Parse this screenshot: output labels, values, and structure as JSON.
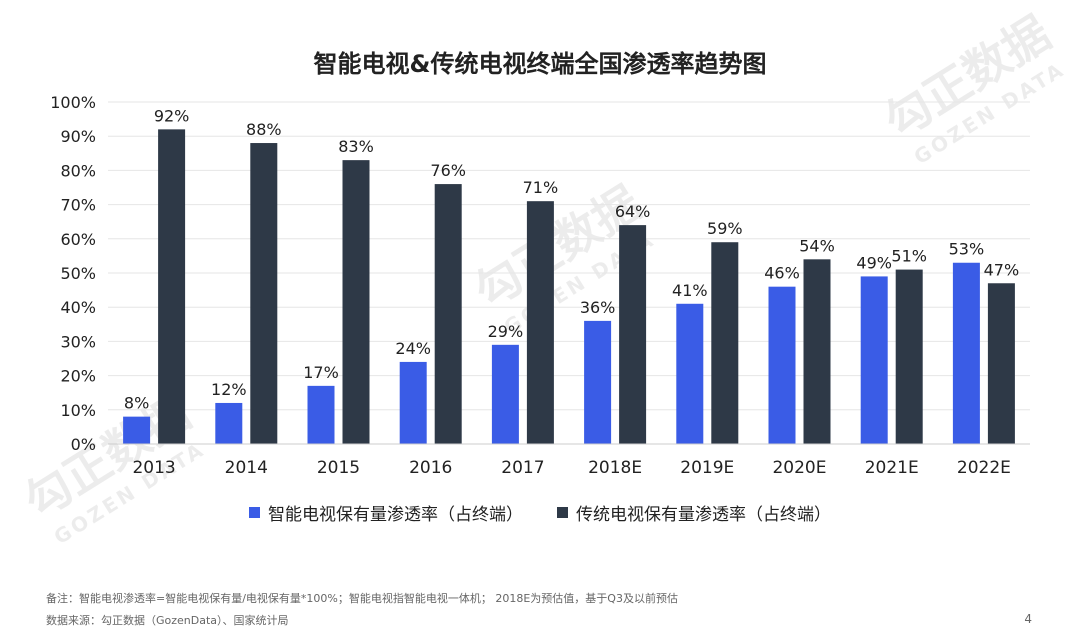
{
  "colors": {
    "smart": "#3a5ce6",
    "traditional": "#2e3947",
    "grid": "#e6e6e6"
  },
  "watermark": {
    "cn": "勾正数据",
    "en": "GOZEN DATA"
  },
  "footnotes": {
    "note": "备注：智能电视渗透率=智能电视保有量/电视保有量*100%；智能电视指智能电视一体机；   2018E为预估值，基于Q3及以前预估",
    "source": "数据来源：勾正数据（GozenData）、国家统计局"
  },
  "page_number": "4",
  "chart_data": {
    "type": "bar",
    "title": "智能电视&传统电视终端全国渗透率趋势图",
    "categories": [
      "2013",
      "2014",
      "2015",
      "2016",
      "2017",
      "2018E",
      "2019E",
      "2020E",
      "2021E",
      "2022E"
    ],
    "series": [
      {
        "name": "智能电视保有量渗透率（占终端）",
        "values": [
          8,
          12,
          17,
          24,
          29,
          36,
          41,
          46,
          49,
          53
        ],
        "labels": [
          "8%",
          "12%",
          "17%",
          "24%",
          "29%",
          "36%",
          "41%",
          "46%",
          "49%",
          "53%"
        ]
      },
      {
        "name": "传统电视保有量渗透率（占终端）",
        "values": [
          92,
          88,
          83,
          76,
          71,
          64,
          59,
          54,
          51,
          47
        ],
        "labels": [
          "92%",
          "88%",
          "83%",
          "76%",
          "71%",
          "64%",
          "59%",
          "54%",
          "51%",
          "47%"
        ]
      }
    ],
    "yticks": [
      "0%",
      "10%",
      "20%",
      "30%",
      "40%",
      "50%",
      "60%",
      "70%",
      "80%",
      "90%",
      "100%"
    ],
    "ylim": [
      0,
      100
    ],
    "grid": true,
    "legend_position": "bottom"
  }
}
